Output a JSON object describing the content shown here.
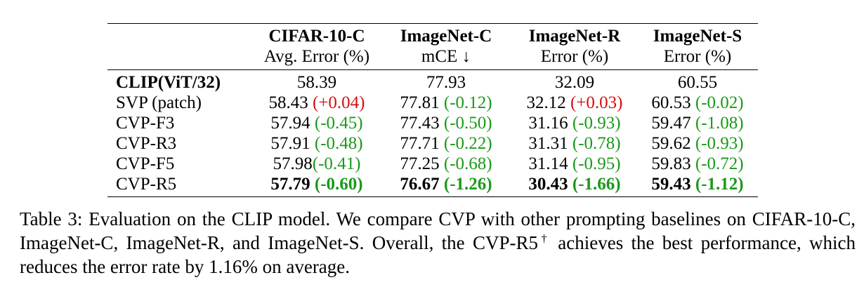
{
  "table": {
    "columns": [
      {
        "name": "CIFAR-10-C",
        "metric": "Avg. Error (%)"
      },
      {
        "name": "ImageNet-C",
        "metric": "mCE ↓"
      },
      {
        "name": "ImageNet-R",
        "metric": "Error (%)"
      },
      {
        "name": "ImageNet-S",
        "metric": "Error (%)"
      }
    ],
    "rows": [
      {
        "label": "CLIP(ViT/32)",
        "cells": [
          {
            "value": "58.39",
            "delta": ""
          },
          {
            "value": "77.93",
            "delta": ""
          },
          {
            "value": "32.09",
            "delta": ""
          },
          {
            "value": "60.55",
            "delta": ""
          }
        ]
      },
      {
        "label": "SVP (patch)",
        "cells": [
          {
            "value": "58.43 ",
            "delta": "(+0.04)"
          },
          {
            "value": "77.81 ",
            "delta": "(-0.12)"
          },
          {
            "value": "32.12 ",
            "delta": "(+0.03)"
          },
          {
            "value": "60.53 ",
            "delta": "(-0.02)"
          }
        ]
      },
      {
        "label": "CVP-F3",
        "cells": [
          {
            "value": "57.94 ",
            "delta": "(-0.45)"
          },
          {
            "value": "77.43 ",
            "delta": "(-0.50)"
          },
          {
            "value": "31.16 ",
            "delta": "(-0.93)"
          },
          {
            "value": "59.47 ",
            "delta": "(-1.08)"
          }
        ]
      },
      {
        "label": "CVP-R3",
        "cells": [
          {
            "value": "57.91 ",
            "delta": "(-0.48)"
          },
          {
            "value": "77.71 ",
            "delta": "(-0.22)"
          },
          {
            "value": "31.31 ",
            "delta": "(-0.78)"
          },
          {
            "value": "59.62 ",
            "delta": "(-0.93)"
          }
        ]
      },
      {
        "label": "CVP-F5",
        "cells": [
          {
            "value": "57.98",
            "delta": "(-0.41)"
          },
          {
            "value": "77.25 ",
            "delta": "(-0.68)"
          },
          {
            "value": "31.14 ",
            "delta": "(-0.95)"
          },
          {
            "value": "59.83 ",
            "delta": "(-0.72)"
          }
        ]
      },
      {
        "label": "CVP-R5",
        "cells": [
          {
            "value": "57.79 ",
            "delta": "(-0.60)"
          },
          {
            "value": "76.67 ",
            "delta": "(-1.26)"
          },
          {
            "value": "30.43 ",
            "delta": "(-1.66)"
          },
          {
            "value": "59.43 ",
            "delta": "(-1.12)"
          }
        ]
      }
    ]
  },
  "caption": {
    "prefix": "Table 3: Evaluation on the CLIP model. We compare CVP with other prompting baselines on CIFAR-10-C, ImageNet-C, ImageNet-R, and ImageNet-S. Overall, the CVP-R5",
    "dagger": "†",
    "suffix": " achieves the best performance, which reduces the error rate by 1.16% on average."
  }
}
